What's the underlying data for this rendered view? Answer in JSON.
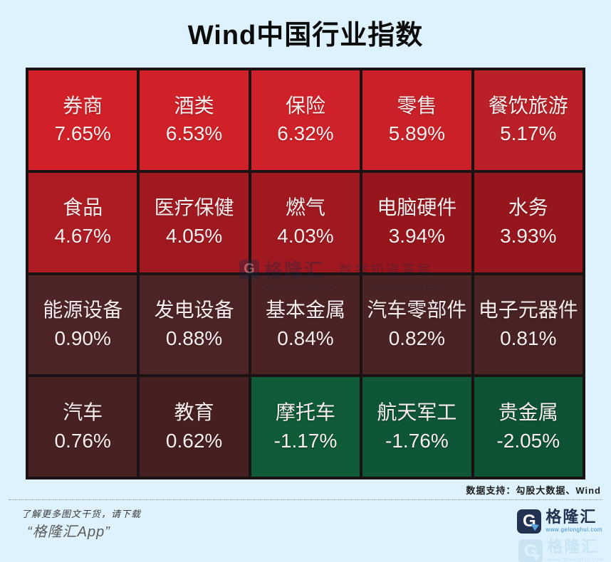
{
  "title": "Wind中国行业指数",
  "chart_data": {
    "type": "heatmap",
    "title": "Wind中国行业指数",
    "columns": 5,
    "rows": 4,
    "unit": "%",
    "color_semantics": {
      "positive": "red shades",
      "negative": "green shades"
    },
    "cells": [
      {
        "label": "券商",
        "value": 7.65,
        "display": "7.65%",
        "color": "#d22028"
      },
      {
        "label": "酒类",
        "value": 6.53,
        "display": "6.53%",
        "color": "#d02129"
      },
      {
        "label": "保险",
        "value": 6.32,
        "display": "6.32%",
        "color": "#cf2129"
      },
      {
        "label": "零售",
        "value": 5.89,
        "display": "5.89%",
        "color": "#ca2128"
      },
      {
        "label": "餐饮旅游",
        "value": 5.17,
        "display": "5.17%",
        "color": "#ba2027"
      },
      {
        "label": "食品",
        "value": 4.67,
        "display": "4.67%",
        "color": "#ae1c23"
      },
      {
        "label": "医疗保健",
        "value": 4.05,
        "display": "4.05%",
        "color": "#a11920"
      },
      {
        "label": "燃气",
        "value": 4.03,
        "display": "4.03%",
        "color": "#a01920"
      },
      {
        "label": "电脑硬件",
        "value": 3.94,
        "display": "3.94%",
        "color": "#97161d"
      },
      {
        "label": "水务",
        "value": 3.93,
        "display": "3.93%",
        "color": "#96161d"
      },
      {
        "label": "能源设备",
        "value": 0.9,
        "display": "0.90%",
        "color": "#4e2527"
      },
      {
        "label": "发电设备",
        "value": 0.88,
        "display": "0.88%",
        "color": "#4c2426"
      },
      {
        "label": "基本金属",
        "value": 0.84,
        "display": "0.84%",
        "color": "#4b2325"
      },
      {
        "label": "汽车零部件",
        "value": 0.82,
        "display": "0.82%",
        "color": "#4a2324"
      },
      {
        "label": "电子元器件",
        "value": 0.81,
        "display": "0.81%",
        "color": "#492223"
      },
      {
        "label": "汽车",
        "value": 0.76,
        "display": "0.76%",
        "color": "#482122"
      },
      {
        "label": "教育",
        "value": 0.62,
        "display": "0.62%",
        "color": "#462021"
      },
      {
        "label": "摩托车",
        "value": -1.17,
        "display": "-1.17%",
        "color": "#0f5a37"
      },
      {
        "label": "航天军工",
        "value": -1.76,
        "display": "-1.76%",
        "color": "#0e5635"
      },
      {
        "label": "贵金属",
        "value": -2.05,
        "display": "-2.05%",
        "color": "#0d5333"
      }
    ]
  },
  "watermark": {
    "logo_letter": "G",
    "brand": "格隆汇",
    "tagline": "数据知道答案",
    "url": "www.gelonghui.com"
  },
  "footer": {
    "data_source": "数据支持：勾股大数据、Wind",
    "promo_line1": "了解更多图文干货，请下载",
    "promo_line2": "“格隆汇App”"
  },
  "logo": {
    "letter": "G",
    "brand": "格隆汇",
    "url": "www.gelonghui.com"
  },
  "colors": {
    "background": "#ddf2fd",
    "grid_border": "#1b1214",
    "cell_text": "#f7eded",
    "brand_navy": "#233250",
    "brand_blue": "#3e8ed0"
  }
}
